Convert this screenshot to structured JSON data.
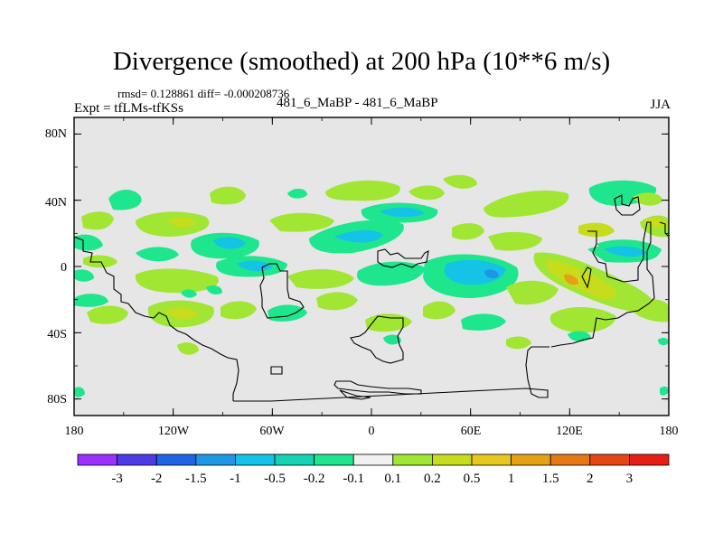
{
  "header": {
    "title": "Divergence (smoothed) at 200 hPa (10**6 m/s)",
    "stats": "rmsd= 0.128861 diff= -0.000208736",
    "experiment": "Expt = tfLMs-tfKSs",
    "runs": "481_6_MaBP - 481_6_MaBP",
    "season": "JJA"
  },
  "map": {
    "background_color": "#e6e6e6",
    "lat_ticks": [
      "80N",
      "40N",
      "0",
      "40S",
      "80S"
    ],
    "lon_ticks": [
      "180",
      "120W",
      "60W",
      "0",
      "60E",
      "120E",
      "180"
    ]
  },
  "colorbar": {
    "colors": [
      "#9b30ff",
      "#4b3ce6",
      "#1e64e6",
      "#1e96e6",
      "#14c3e6",
      "#14d2b4",
      "#1ee68c",
      "#f0f0f0",
      "#a0e632",
      "#c8dc1e",
      "#e6c81e",
      "#e6a014",
      "#e67814",
      "#e64614",
      "#e61e14"
    ],
    "labels": [
      "-3",
      "-2",
      "-1.5",
      "-1",
      "-0.5",
      "-0.2",
      "-0.1",
      "0.1",
      "0.2",
      "0.5",
      "1",
      "1.5",
      "2",
      "3"
    ]
  }
}
